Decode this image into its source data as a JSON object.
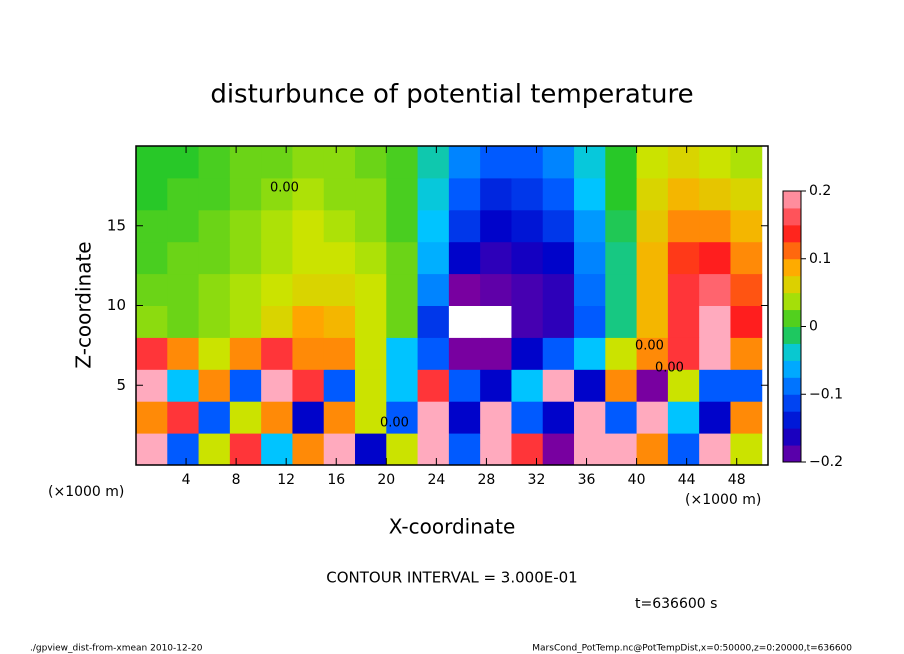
{
  "chart_data": {
    "type": "heatmap",
    "title": "disturbunce of potential temperature",
    "x_label": "X-coordinate",
    "y_label": "Z-coordinate",
    "x_unit": "(×1000 m)",
    "x": [
      1.25,
      3.75,
      6.25,
      8.75,
      11.25,
      13.75,
      16.25,
      18.75,
      21.25,
      23.75,
      26.25,
      28.75,
      31.25,
      33.75,
      36.25,
      38.75,
      41.25,
      43.75,
      46.25,
      48.75
    ],
    "y": [
      1,
      3,
      5,
      7,
      9,
      11,
      13,
      15,
      17,
      19
    ],
    "values": [
      [
        0.2,
        -0.1,
        0.05,
        0.15,
        -0.05,
        0.1,
        0.2,
        -0.15,
        0.05,
        0.2,
        -0.1,
        0.2,
        0.15,
        -0.2,
        0.2,
        0.2,
        0.1,
        -0.1,
        0.2,
        0.05
      ],
      [
        0.1,
        0.15,
        -0.1,
        0.05,
        0.1,
        -0.15,
        0.1,
        0.05,
        -0.1,
        0.2,
        -0.15,
        0.2,
        -0.1,
        -0.15,
        0.2,
        -0.1,
        0.2,
        -0.05,
        -0.15,
        0.1
      ],
      [
        0.2,
        -0.05,
        0.1,
        -0.1,
        0.2,
        0.15,
        -0.1,
        0.05,
        -0.05,
        0.15,
        -0.1,
        -0.15,
        -0.05,
        0.2,
        -0.15,
        0.1,
        -0.2,
        0.05,
        -0.1,
        -0.1
      ],
      [
        0.15,
        0.1,
        0.05,
        0.1,
        0.15,
        0.1,
        0.1,
        0.05,
        -0.05,
        -0.1,
        -0.2,
        -0.2,
        -0.15,
        -0.1,
        -0.05,
        0.05,
        0.1,
        0.15,
        0.2,
        0.1
      ],
      [
        0.03,
        0.02,
        0.03,
        0.04,
        0.06,
        0.09,
        0.08,
        0.05,
        0.02,
        -0.12,
        -0.25,
        -0.22,
        -0.18,
        -0.17,
        -0.1,
        -0.02,
        0.08,
        0.15,
        0.2,
        0.14
      ],
      [
        0.02,
        0.02,
        0.03,
        0.04,
        0.05,
        0.06,
        0.06,
        0.05,
        0.02,
        -0.08,
        -0.2,
        -0.19,
        -0.18,
        -0.17,
        -0.09,
        -0.02,
        0.08,
        0.15,
        0.17,
        0.12
      ],
      [
        0.01,
        0.02,
        0.02,
        0.03,
        0.04,
        0.05,
        0.05,
        0.04,
        0.02,
        -0.06,
        -0.15,
        -0.17,
        -0.16,
        -0.15,
        -0.08,
        -0.02,
        0.08,
        0.13,
        0.14,
        0.1
      ],
      [
        0.01,
        0.01,
        0.02,
        0.03,
        0.04,
        0.05,
        0.04,
        0.03,
        0.01,
        -0.05,
        -0.12,
        -0.15,
        -0.14,
        -0.12,
        -0.07,
        -0.01,
        0.07,
        0.1,
        0.1,
        0.08
      ],
      [
        0.0,
        0.01,
        0.01,
        0.02,
        0.03,
        0.04,
        0.03,
        0.03,
        0.01,
        -0.04,
        -0.1,
        -0.13,
        -0.12,
        -0.1,
        -0.05,
        0.0,
        0.06,
        0.08,
        0.07,
        0.06
      ],
      [
        0.0,
        0.0,
        0.01,
        0.02,
        0.02,
        0.03,
        0.03,
        0.02,
        0.01,
        -0.03,
        -0.08,
        -0.1,
        -0.1,
        -0.08,
        -0.04,
        0.0,
        0.05,
        0.06,
        0.05,
        0.04
      ]
    ],
    "xlim": [
      0,
      50.5
    ],
    "ylim": [
      0,
      20
    ],
    "xticks": [
      4,
      8,
      12,
      16,
      20,
      24,
      28,
      32,
      36,
      40,
      44,
      48
    ],
    "yticks": [
      5,
      10,
      15
    ],
    "clim": [
      -0.2,
      0.2
    ],
    "cticks": [
      {
        "value": -0.2,
        "label": "−0.2"
      },
      {
        "value": -0.1,
        "label": "−0.1"
      },
      0,
      0.1,
      0.2
    ],
    "contour_label": "0.00",
    "contour_interval": "CONTOUR INTERVAL = 3.000E-01",
    "time_label": "t=636600 s",
    "footer_left": "./gpview_dist-from-xmean  2010-12-20",
    "footer_right": "MarsCond_PotTemp.nc@PotTempDist,x=0:50000,z=0:20000,t=636600"
  }
}
